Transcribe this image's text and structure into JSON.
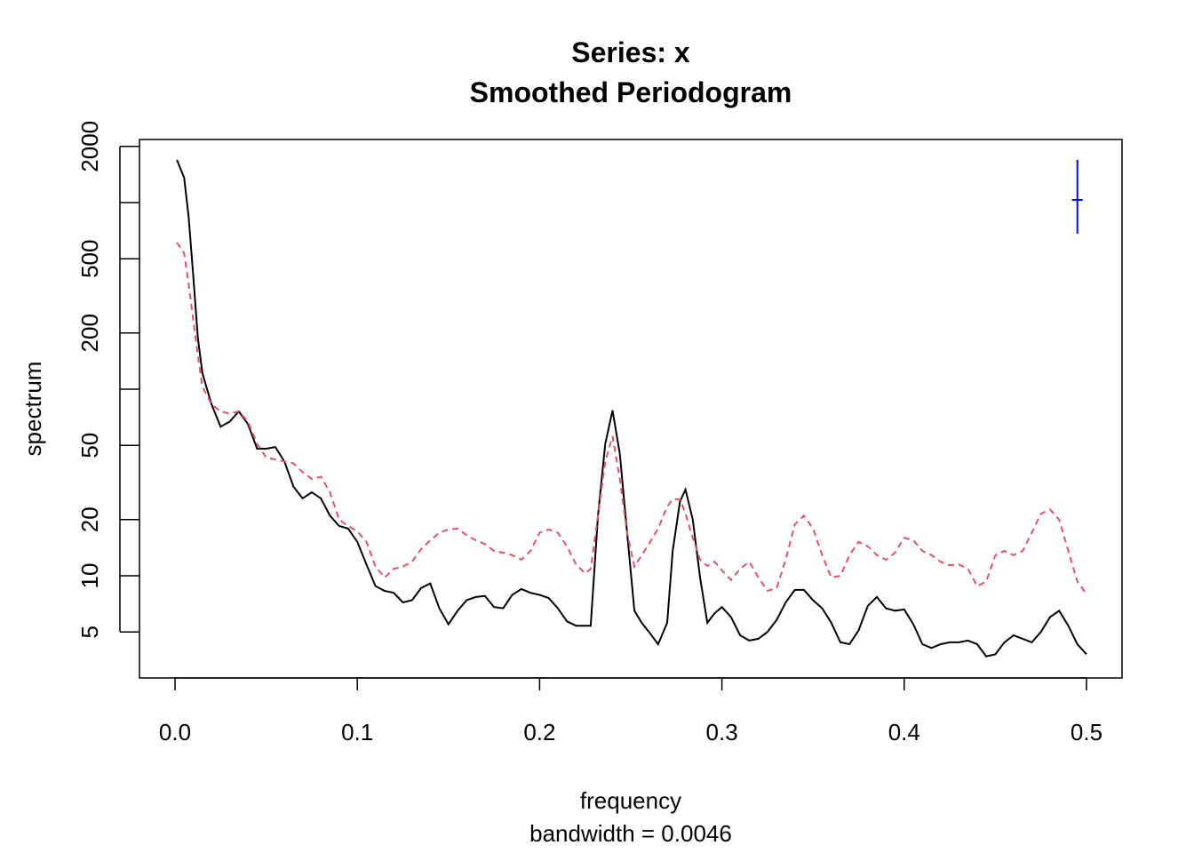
{
  "chart_data": {
    "type": "line",
    "title": "Series: x",
    "subtitle": "Smoothed Periodogram",
    "xlabel": "frequency",
    "xsublabel": "bandwidth = 0.0046",
    "ylabel": "spectrum",
    "log_y": true,
    "xlim": [
      -0.0195,
      0.5195
    ],
    "ylim": [
      2.835,
      2178
    ],
    "xticks": [
      {
        "value": 0,
        "label": "0.0"
      },
      0.1,
      0.2,
      0.3,
      0.4,
      0.5
    ],
    "yticks": [
      5,
      10,
      20,
      50,
      200,
      500,
      2000
    ],
    "unlabeled_yticks": [
      100,
      1000
    ],
    "x": [
      0.001,
      0.005,
      0.0075,
      0.01,
      0.0125,
      0.015,
      0.02,
      0.025,
      0.03,
      0.035,
      0.04,
      0.045,
      0.05,
      0.055,
      0.06,
      0.065,
      0.07,
      0.075,
      0.08,
      0.085,
      0.09,
      0.095,
      0.1,
      0.105,
      0.11,
      0.115,
      0.12,
      0.125,
      0.13,
      0.135,
      0.14,
      0.145,
      0.15,
      0.155,
      0.16,
      0.165,
      0.17,
      0.175,
      0.18,
      0.185,
      0.19,
      0.195,
      0.2,
      0.205,
      0.21,
      0.215,
      0.22,
      0.225,
      0.228,
      0.232,
      0.236,
      0.24,
      0.244,
      0.248,
      0.252,
      0.256,
      0.26,
      0.265,
      0.27,
      0.273,
      0.277,
      0.28,
      0.284,
      0.288,
      0.292,
      0.296,
      0.3,
      0.305,
      0.31,
      0.315,
      0.32,
      0.325,
      0.33,
      0.335,
      0.34,
      0.345,
      0.35,
      0.355,
      0.36,
      0.365,
      0.37,
      0.375,
      0.38,
      0.385,
      0.39,
      0.395,
      0.4,
      0.405,
      0.41,
      0.415,
      0.42,
      0.425,
      0.43,
      0.435,
      0.44,
      0.445,
      0.45,
      0.455,
      0.46,
      0.465,
      0.47,
      0.475,
      0.48,
      0.485,
      0.49,
      0.495,
      0.5
    ],
    "series": [
      {
        "color": "#000000",
        "dash": false,
        "values": [
          1694,
          1360,
          830,
          407,
          189,
          122,
          83,
          63,
          67,
          76,
          65,
          48,
          48,
          49,
          41,
          30,
          26,
          28,
          26,
          21,
          18.5,
          17.9,
          15.2,
          11.5,
          8.8,
          8.3,
          8.1,
          7.2,
          7.4,
          8.6,
          9.1,
          6.7,
          5.5,
          6.5,
          7.4,
          7.7,
          7.8,
          6.8,
          6.7,
          7.9,
          8.5,
          8.1,
          7.9,
          7.6,
          6.7,
          5.7,
          5.4,
          5.4,
          5.4,
          21,
          51,
          77,
          45,
          17,
          6.5,
          5.6,
          5.0,
          4.3,
          5.6,
          13.6,
          25,
          29,
          20,
          9.8,
          5.6,
          6.3,
          6.8,
          6.0,
          4.8,
          4.5,
          4.6,
          5.0,
          5.8,
          7.2,
          8.4,
          8.4,
          7.4,
          6.7,
          5.6,
          4.4,
          4.3,
          5.1,
          6.9,
          7.7,
          6.7,
          6.5,
          6.6,
          5.5,
          4.3,
          4.1,
          4.3,
          4.4,
          4.4,
          4.5,
          4.3,
          3.7,
          3.8,
          4.4,
          4.8,
          4.6,
          4.4,
          5.0,
          6.0,
          6.5,
          5.4,
          4.3,
          3.8
        ]
      },
      {
        "color": "#df536b",
        "dash": true,
        "values": [
          611,
          535,
          365,
          235,
          152,
          103,
          83,
          76,
          74,
          76,
          67,
          51,
          43,
          42,
          41,
          40,
          36,
          33,
          34,
          28,
          20,
          18.5,
          17.3,
          15.2,
          11.2,
          9.8,
          10.9,
          11.2,
          11.9,
          13.9,
          15.5,
          17,
          17.7,
          17.9,
          16.5,
          15.5,
          14.8,
          13.6,
          13.3,
          12.9,
          12.2,
          13.6,
          17,
          17.7,
          17,
          14.4,
          11.5,
          10.3,
          10.9,
          21,
          41,
          56,
          33,
          17,
          11.2,
          12.9,
          14.8,
          17.9,
          23.5,
          25.7,
          25.7,
          21.5,
          16.0,
          12.2,
          11.3,
          11.9,
          10.7,
          9.5,
          10.9,
          11.9,
          9.8,
          8.3,
          8.6,
          12.2,
          18.9,
          21,
          17.9,
          12.9,
          9.8,
          10,
          12.9,
          15.2,
          14.4,
          12.9,
          12.2,
          13.3,
          16,
          15.5,
          13.6,
          12.9,
          11.9,
          11.4,
          11.5,
          10.9,
          8.8,
          9.3,
          12.9,
          13.6,
          12.9,
          13.6,
          17,
          21.5,
          22.7,
          20,
          13.6,
          9.3,
          8.0
        ]
      }
    ],
    "ci_bar": {
      "x": 0.495,
      "center": 1033,
      "lower": 681,
      "upper": 1694,
      "color": "#0000ff"
    }
  }
}
